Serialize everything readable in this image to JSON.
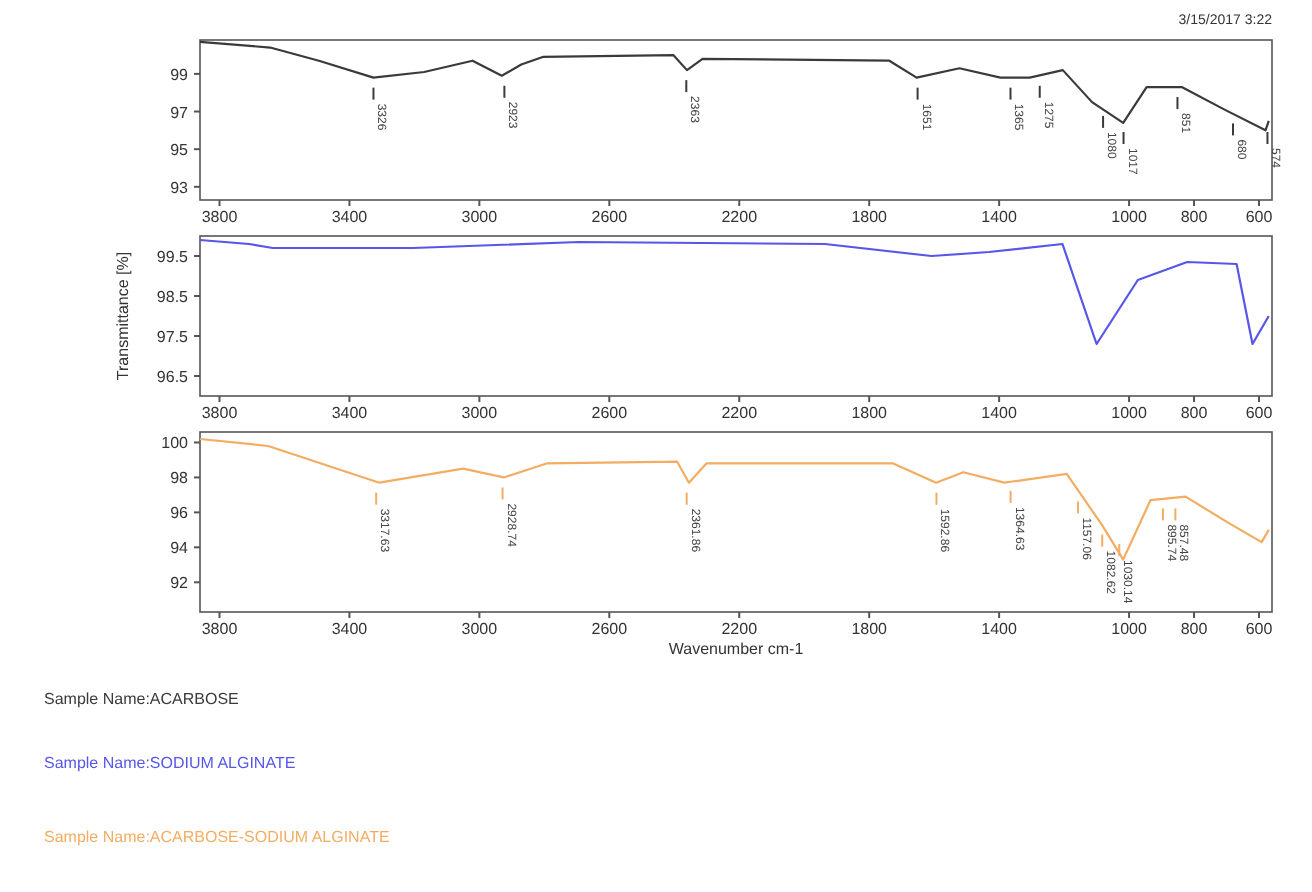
{
  "chart_data": [
    {
      "type": "line",
      "annotations": [
        "3/15/2017  3:22",
        {
          "text": "3326",
          "x": 3326,
          "y": 98.8
        },
        {
          "text": "2923",
          "x": 2923,
          "y": 98.9
        },
        {
          "text": "2363",
          "x": 2363,
          "y": 99.2
        },
        {
          "text": "1651",
          "x": 1651,
          "y": 98.8
        },
        {
          "text": "1365",
          "x": 1365,
          "y": 98.8
        },
        {
          "text": "1275",
          "x": 1275,
          "y": 98.9
        },
        {
          "text": "1080",
          "x": 1080,
          "y": 97.3
        },
        {
          "text": "1017",
          "x": 1017,
          "y": 96.4
        },
        {
          "text": "851",
          "x": 851,
          "y": 98.3
        },
        {
          "text": "680",
          "x": 680,
          "y": 96.9
        },
        {
          "text": "574",
          "x": 574,
          "y": 96.2
        }
      ],
      "xlim": [
        3860,
        560
      ],
      "xticks": [
        3800,
        3400,
        3000,
        2600,
        2200,
        1800,
        1400,
        1000,
        800,
        600
      ],
      "ylim": [
        92.3,
        100.8
      ],
      "yticks": [
        99,
        97,
        95,
        93
      ],
      "grid": false,
      "legend": "bottom",
      "marker": "none",
      "series": [
        {
          "name": "Sample Name:ACARBOSE",
          "color": "#3a3a3a",
          "x": [
            3860,
            3644,
            3494,
            3326,
            3170,
            3021,
            2931,
            2871,
            2805,
            2403,
            2361,
            2313,
            1738,
            1654,
            1522,
            1396,
            1306,
            1204,
            1114,
            1018,
            946,
            838,
            706,
            580,
            570
          ],
          "values": [
            100.7,
            100.4,
            99.7,
            98.8,
            99.1,
            99.7,
            98.9,
            99.5,
            99.9,
            100.0,
            99.2,
            99.8,
            99.7,
            98.8,
            99.3,
            98.8,
            98.8,
            99.2,
            97.5,
            96.4,
            98.3,
            98.3,
            97.1,
            96.0,
            96.5
          ]
        }
      ]
    },
    {
      "type": "line",
      "ylabel": "Transmittance [%]",
      "xlim": [
        3860,
        560
      ],
      "xticks": [
        3800,
        3400,
        3000,
        2600,
        2200,
        1800,
        1400,
        1000,
        800,
        600
      ],
      "ylim": [
        96.0,
        100.0
      ],
      "yticks": [
        99.5,
        98.5,
        97.5,
        96.5
      ],
      "grid": false,
      "legend": "bottom",
      "marker": "none",
      "series": [
        {
          "name": "Sample Name:SODIUM ALGINATE",
          "color": "#5656e8",
          "x": [
            3860,
            3709,
            3636,
            3204,
            2694,
            1936,
            1608,
            1431,
            1205,
            1100,
            973,
            821,
            669,
            620,
            570
          ],
          "values": [
            99.9,
            99.8,
            99.7,
            99.7,
            99.85,
            99.8,
            99.5,
            99.6,
            99.8,
            97.3,
            98.9,
            99.35,
            99.3,
            97.3,
            98.0
          ]
        }
      ]
    },
    {
      "type": "line",
      "xlabel": "Wavenumber cm-1",
      "annotations": [
        {
          "text": "3317.63",
          "x": 3317.63,
          "y": 97.7
        },
        {
          "text": "2928.74",
          "x": 2928.74,
          "y": 98.0
        },
        {
          "text": "2361.86",
          "x": 2361.86,
          "y": 97.7
        },
        {
          "text": "1592.86",
          "x": 1592.86,
          "y": 97.7
        },
        {
          "text": "1364.63",
          "x": 1364.63,
          "y": 97.8
        },
        {
          "text": "1157.06",
          "x": 1157.06,
          "y": 97.2
        },
        {
          "text": "1082.62",
          "x": 1082.62,
          "y": 95.3
        },
        {
          "text": "1030.14",
          "x": 1030.14,
          "y": 93.5
        },
        {
          "text": "895.74",
          "x": 895.74,
          "y": 96.8
        },
        {
          "text": "857.48",
          "x": 857.48,
          "y": 96.8
        }
      ],
      "xlim": [
        3860,
        560
      ],
      "xticks": [
        3800,
        3400,
        3000,
        2600,
        2200,
        1800,
        1400,
        1000,
        800,
        600
      ],
      "ylim": [
        90.3,
        100.6
      ],
      "yticks": [
        100,
        98,
        96,
        94,
        92
      ],
      "grid": false,
      "legend": "bottom",
      "marker": "none",
      "series": [
        {
          "name": "Sample Name:ACARBOSE-SODIUM ALGINATE",
          "color": "#f2ad62",
          "x": [
            3860,
            3650,
            3308,
            3050,
            2925,
            2793,
            2391,
            2355,
            2301,
            1726,
            1594,
            1510,
            1384,
            1192,
            1084,
            1018,
            934,
            826,
            694,
            592,
            570
          ],
          "values": [
            100.2,
            99.8,
            97.7,
            98.5,
            98.0,
            98.8,
            98.9,
            97.7,
            98.8,
            98.8,
            97.7,
            98.3,
            97.7,
            98.2,
            95.3,
            93.3,
            96.7,
            96.9,
            95.4,
            94.3,
            95.0
          ]
        }
      ]
    }
  ]
}
